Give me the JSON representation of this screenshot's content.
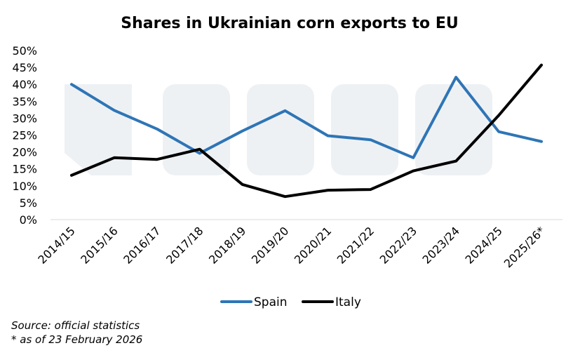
{
  "chart_data": {
    "type": "line",
    "title": "Shares in Ukrainian corn exports to EU",
    "xlabel": "",
    "ylabel": "",
    "ylim": [
      0,
      50
    ],
    "y_ticks": [
      "0%",
      "5%",
      "10%",
      "15%",
      "20%",
      "25%",
      "30%",
      "35%",
      "40%",
      "45%",
      "50%"
    ],
    "y_tick_values": [
      0,
      5,
      10,
      15,
      20,
      25,
      30,
      35,
      40,
      45,
      50
    ],
    "categories": [
      "2014/15",
      "2015/16",
      "2016/17",
      "2017/18",
      "2018/19",
      "2019/20",
      "2020/21",
      "2021/22",
      "2022/23",
      "2023/24",
      "2024/25",
      "2025/26*"
    ],
    "series": [
      {
        "name": "Spain",
        "color": "#2e75b6",
        "values": [
          40.0,
          32.3,
          26.8,
          19.6,
          26.2,
          32.2,
          24.8,
          23.6,
          18.3,
          42.1,
          26.0,
          23.1
        ]
      },
      {
        "name": "Italy",
        "color": "#000000",
        "values": [
          13.1,
          18.3,
          17.8,
          20.8,
          10.4,
          6.8,
          8.7,
          8.9,
          14.4,
          17.3,
          30.8,
          45.7
        ]
      }
    ],
    "grid": false,
    "legend_position": "bottom"
  },
  "notes": {
    "source": "Source: official statistics",
    "asof": "* as of 23 February 2026"
  }
}
